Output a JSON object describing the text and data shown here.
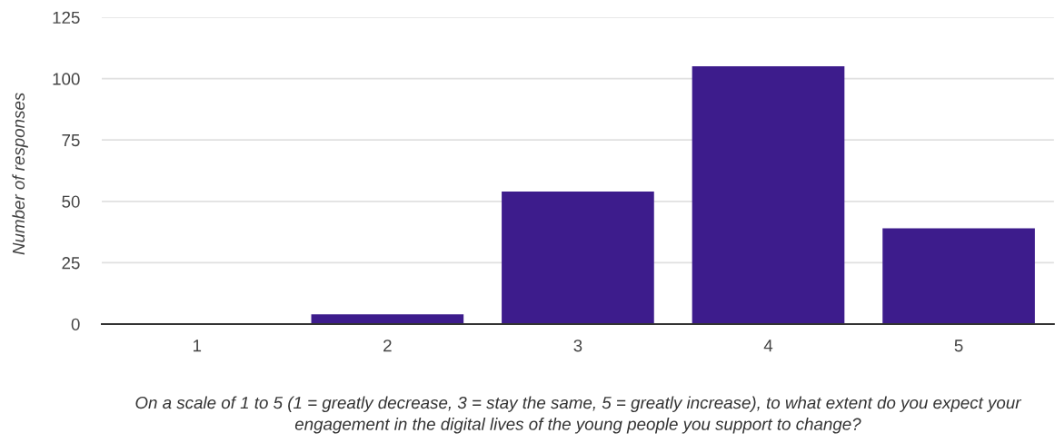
{
  "chart_data": {
    "type": "bar",
    "xlabel": "On a scale of 1 to 5 (1 = greatly decrease, 3 = stay the same, 5 = greatly increase), to what extent do you expect your engagement in the digital lives of the young people you support to change?",
    "ylabel": "Number of responses",
    "categories": [
      "1",
      "2",
      "3",
      "4",
      "5"
    ],
    "values": [
      0,
      4,
      54,
      105,
      39
    ],
    "color": "#3d1c8c",
    "ylim": [
      0,
      125
    ],
    "yticks": [
      0,
      25,
      50,
      75,
      100,
      125
    ],
    "grid": "y",
    "legend": false
  }
}
